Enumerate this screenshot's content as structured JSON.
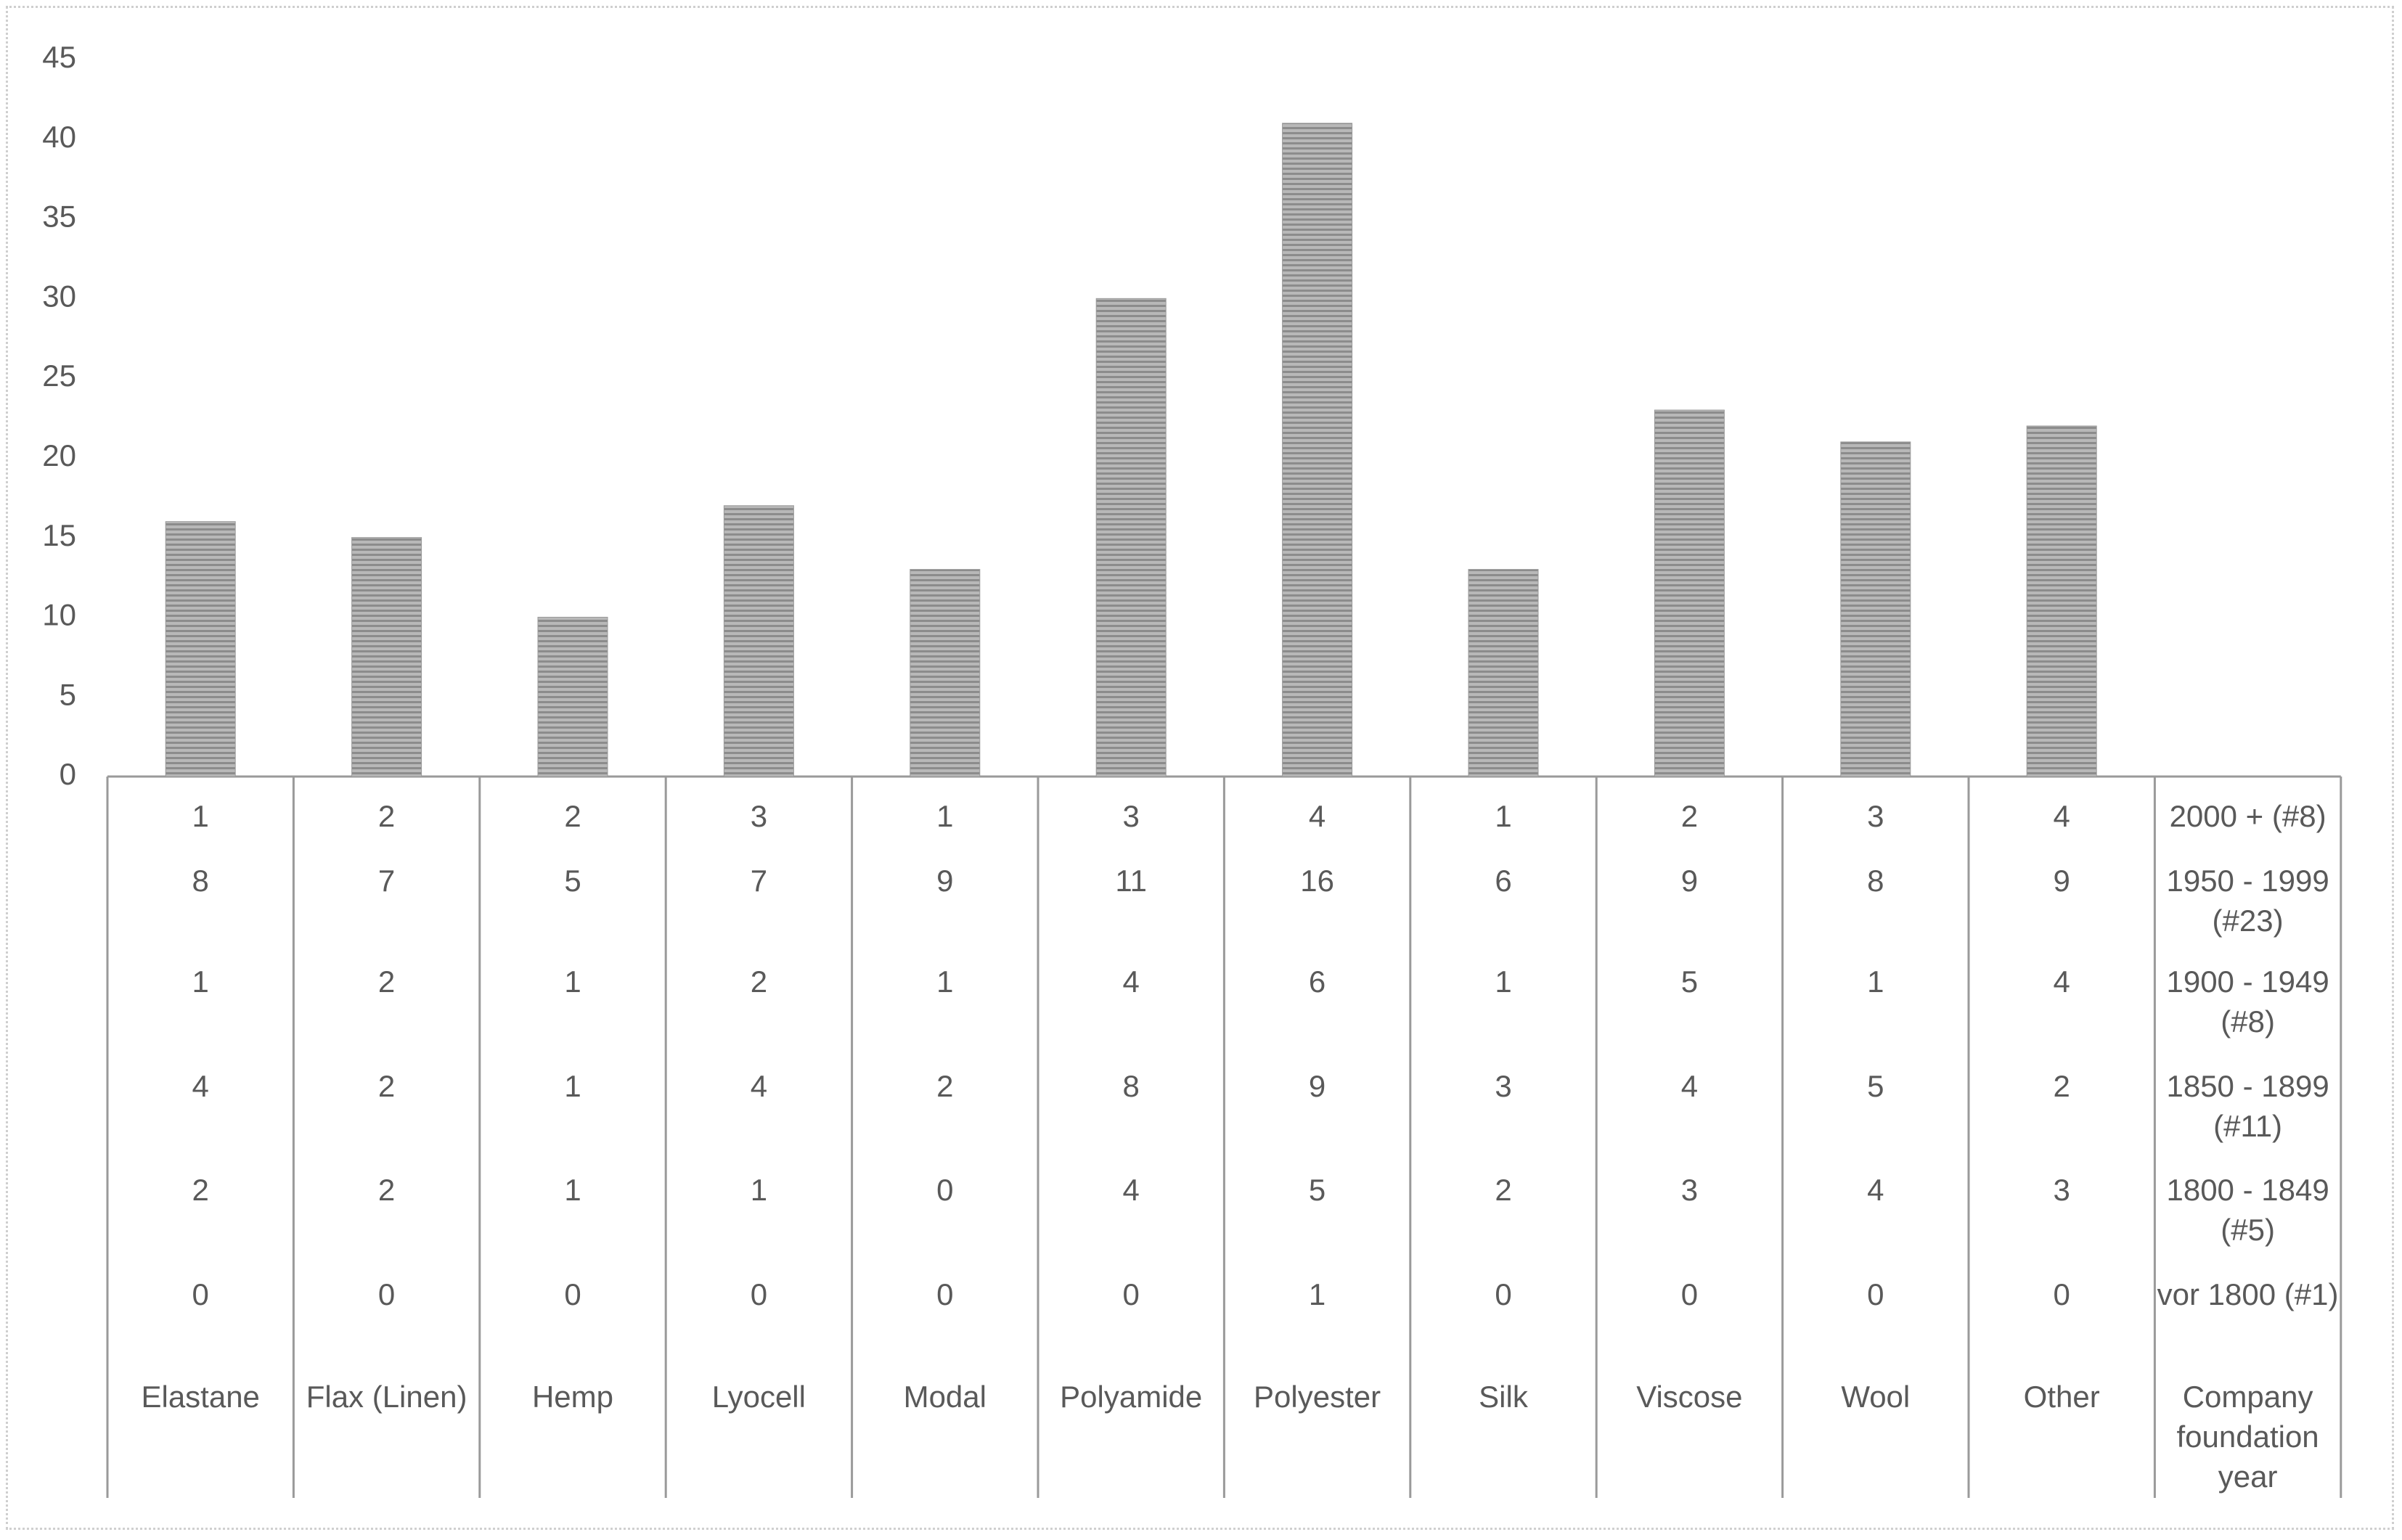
{
  "chart_data": {
    "type": "bar",
    "categories": [
      "Elastane",
      "Flax (Linen)",
      "Hemp",
      "Lyocell",
      "Modal",
      "Polyamide",
      "Polyester",
      "Silk",
      "Viscose",
      "Wool",
      "Other"
    ],
    "values": [
      16,
      15,
      10,
      17,
      13,
      30,
      41,
      13,
      23,
      21,
      22
    ],
    "color": "#9a9a9a",
    "ylim": [
      0,
      45
    ],
    "yticks": [
      0,
      5,
      10,
      15,
      20,
      25,
      30,
      35,
      40,
      45
    ],
    "table": {
      "header": "Company foundation year",
      "rows": [
        {
          "name": "2000 + (#8)",
          "values": [
            1,
            2,
            2,
            3,
            1,
            3,
            4,
            1,
            2,
            3,
            4
          ]
        },
        {
          "name": "1950 - 1999 (#23)",
          "values": [
            8,
            7,
            5,
            7,
            9,
            11,
            16,
            6,
            9,
            8,
            9
          ]
        },
        {
          "name": "1900 - 1949 (#8)",
          "values": [
            1,
            2,
            1,
            2,
            1,
            4,
            6,
            1,
            5,
            1,
            4
          ]
        },
        {
          "name": "1850 - 1899 (#11)",
          "values": [
            4,
            2,
            1,
            4,
            2,
            8,
            9,
            3,
            4,
            5,
            2
          ]
        },
        {
          "name": "1800 - 1849 (#5)",
          "values": [
            2,
            2,
            1,
            1,
            0,
            4,
            5,
            2,
            3,
            4,
            3
          ]
        },
        {
          "name": "vor 1800 (#1)",
          "values": [
            0,
            0,
            0,
            0,
            0,
            0,
            1,
            0,
            0,
            0,
            0
          ]
        }
      ]
    }
  }
}
